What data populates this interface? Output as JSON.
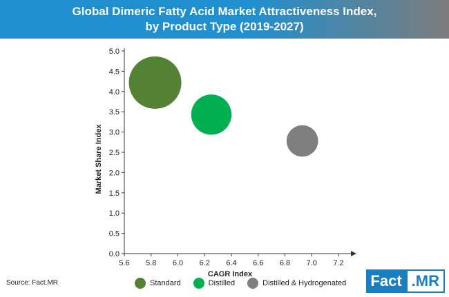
{
  "header": {
    "title_line1": "Global Dimeric Fatty Acid Market Attractiveness Index,",
    "title_line2": "by Product Type (2019-2027)"
  },
  "chart_data": {
    "type": "scatter",
    "subtype": "bubble",
    "xlabel": "CAGR Index",
    "ylabel": "Market Share Index",
    "xlim": [
      5.6,
      7.2
    ],
    "ylim": [
      0.0,
      5.0
    ],
    "x_ticks": [
      "5.6",
      "5.8",
      "6.0",
      "6.2",
      "6.4",
      "6.6",
      "6.8",
      "7.0",
      "7.2"
    ],
    "y_ticks": [
      "0.0",
      "0.5",
      "1.0",
      "1.5",
      "2.0",
      "2.5",
      "3.0",
      "3.5",
      "4.0",
      "4.5",
      "5.0"
    ],
    "grid": false,
    "legend_position": "bottom",
    "series": [
      {
        "name": "Standard",
        "x": 5.83,
        "y": 4.22,
        "size": 1.0,
        "color": "#548235"
      },
      {
        "name": "Distilled",
        "x": 6.25,
        "y": 3.43,
        "size": 0.59,
        "color": "#00b050"
      },
      {
        "name": "Distilled & Hydrogenated",
        "x": 6.93,
        "y": 2.78,
        "size": 0.36,
        "color": "#7f7f7f"
      }
    ]
  },
  "footer": {
    "source": "Source: Fact.MR",
    "logo_main": "Fact",
    "logo_mr": ".MR"
  }
}
